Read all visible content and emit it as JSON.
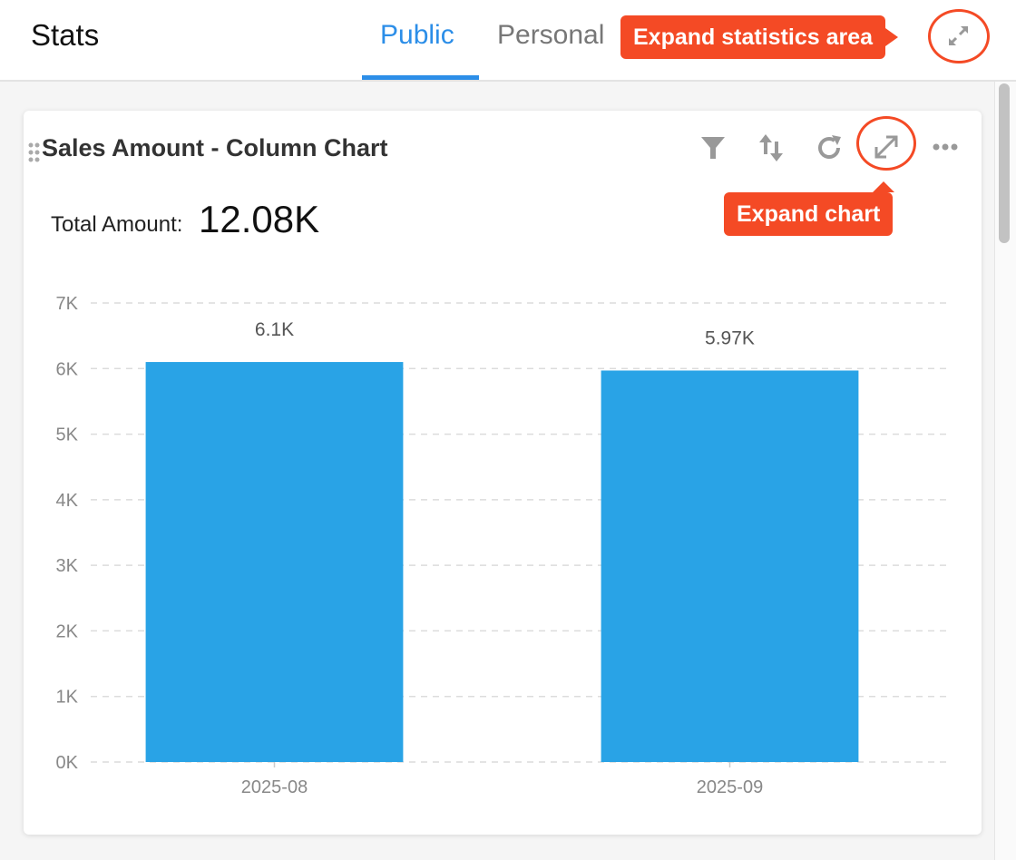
{
  "header": {
    "title": "Stats",
    "tabs": [
      {
        "label": "Public",
        "active": true
      },
      {
        "label": "Personal",
        "active": false
      }
    ],
    "expand_icon": "expand-arrows-icon"
  },
  "callouts": {
    "expand_area": "Expand statistics area",
    "expand_chart": "Expand chart",
    "color": "#f44a25"
  },
  "card": {
    "title": "Sales Amount - Column Chart",
    "toolbar_icons": [
      "drag-handle-icon",
      "filter-icon",
      "sort-icon",
      "refresh-icon",
      "expand-icon",
      "more-icon"
    ],
    "total_label": "Total Amount:",
    "total_value": "12.08K"
  },
  "chart_data": {
    "type": "bar",
    "categories": [
      "2025-08",
      "2025-09"
    ],
    "values": [
      6100,
      5970
    ],
    "data_labels": [
      "6.1K",
      "5.97K"
    ],
    "ylim": [
      0,
      7000
    ],
    "yticks": [
      "0K",
      "1K",
      "2K",
      "3K",
      "4K",
      "5K",
      "6K",
      "7K"
    ],
    "grid": true,
    "bar_color": "#29a3e6"
  }
}
